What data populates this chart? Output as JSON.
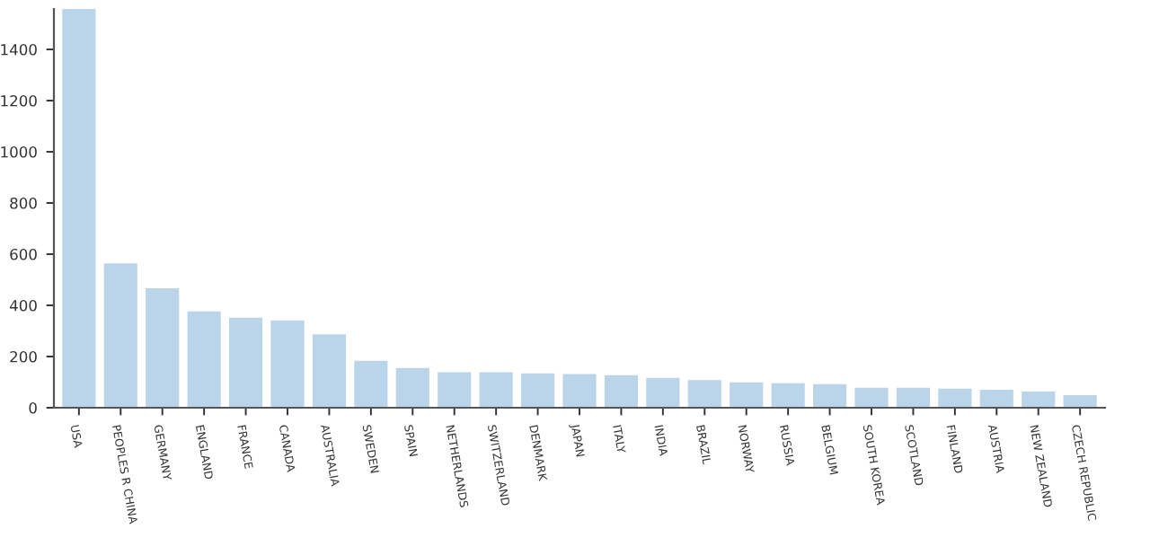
{
  "chart_data": {
    "type": "bar",
    "categories": [
      "USA",
      "PEOPLES R CHINA",
      "GERMANY",
      "ENGLAND",
      "FRANCE",
      "CANADA",
      "AUSTRALIA",
      "SWEDEN",
      "SPAIN",
      "NETHERLANDS",
      "SWITZERLAND",
      "DENMARK",
      "JAPAN",
      "ITALY",
      "INDIA",
      "BRAZIL",
      "NORWAY",
      "RUSSIA",
      "BELGIUM",
      "SOUTH KOREA",
      "SCOTLAND",
      "FINLAND",
      "AUSTRIA",
      "NEW ZEALAND",
      "CZECH REPUBLIC"
    ],
    "values": [
      1558,
      564,
      467,
      376,
      352,
      341,
      287,
      183,
      155,
      139,
      139,
      134,
      132,
      127,
      117,
      108,
      99,
      96,
      92,
      78,
      78,
      75,
      70,
      63,
      49
    ],
    "color": "#bad4ea",
    "ylim": [
      0,
      1558
    ],
    "yticks": [
      0,
      200,
      400,
      600,
      800,
      1000,
      1200,
      1400
    ],
    "grid": false,
    "legend": false
  }
}
